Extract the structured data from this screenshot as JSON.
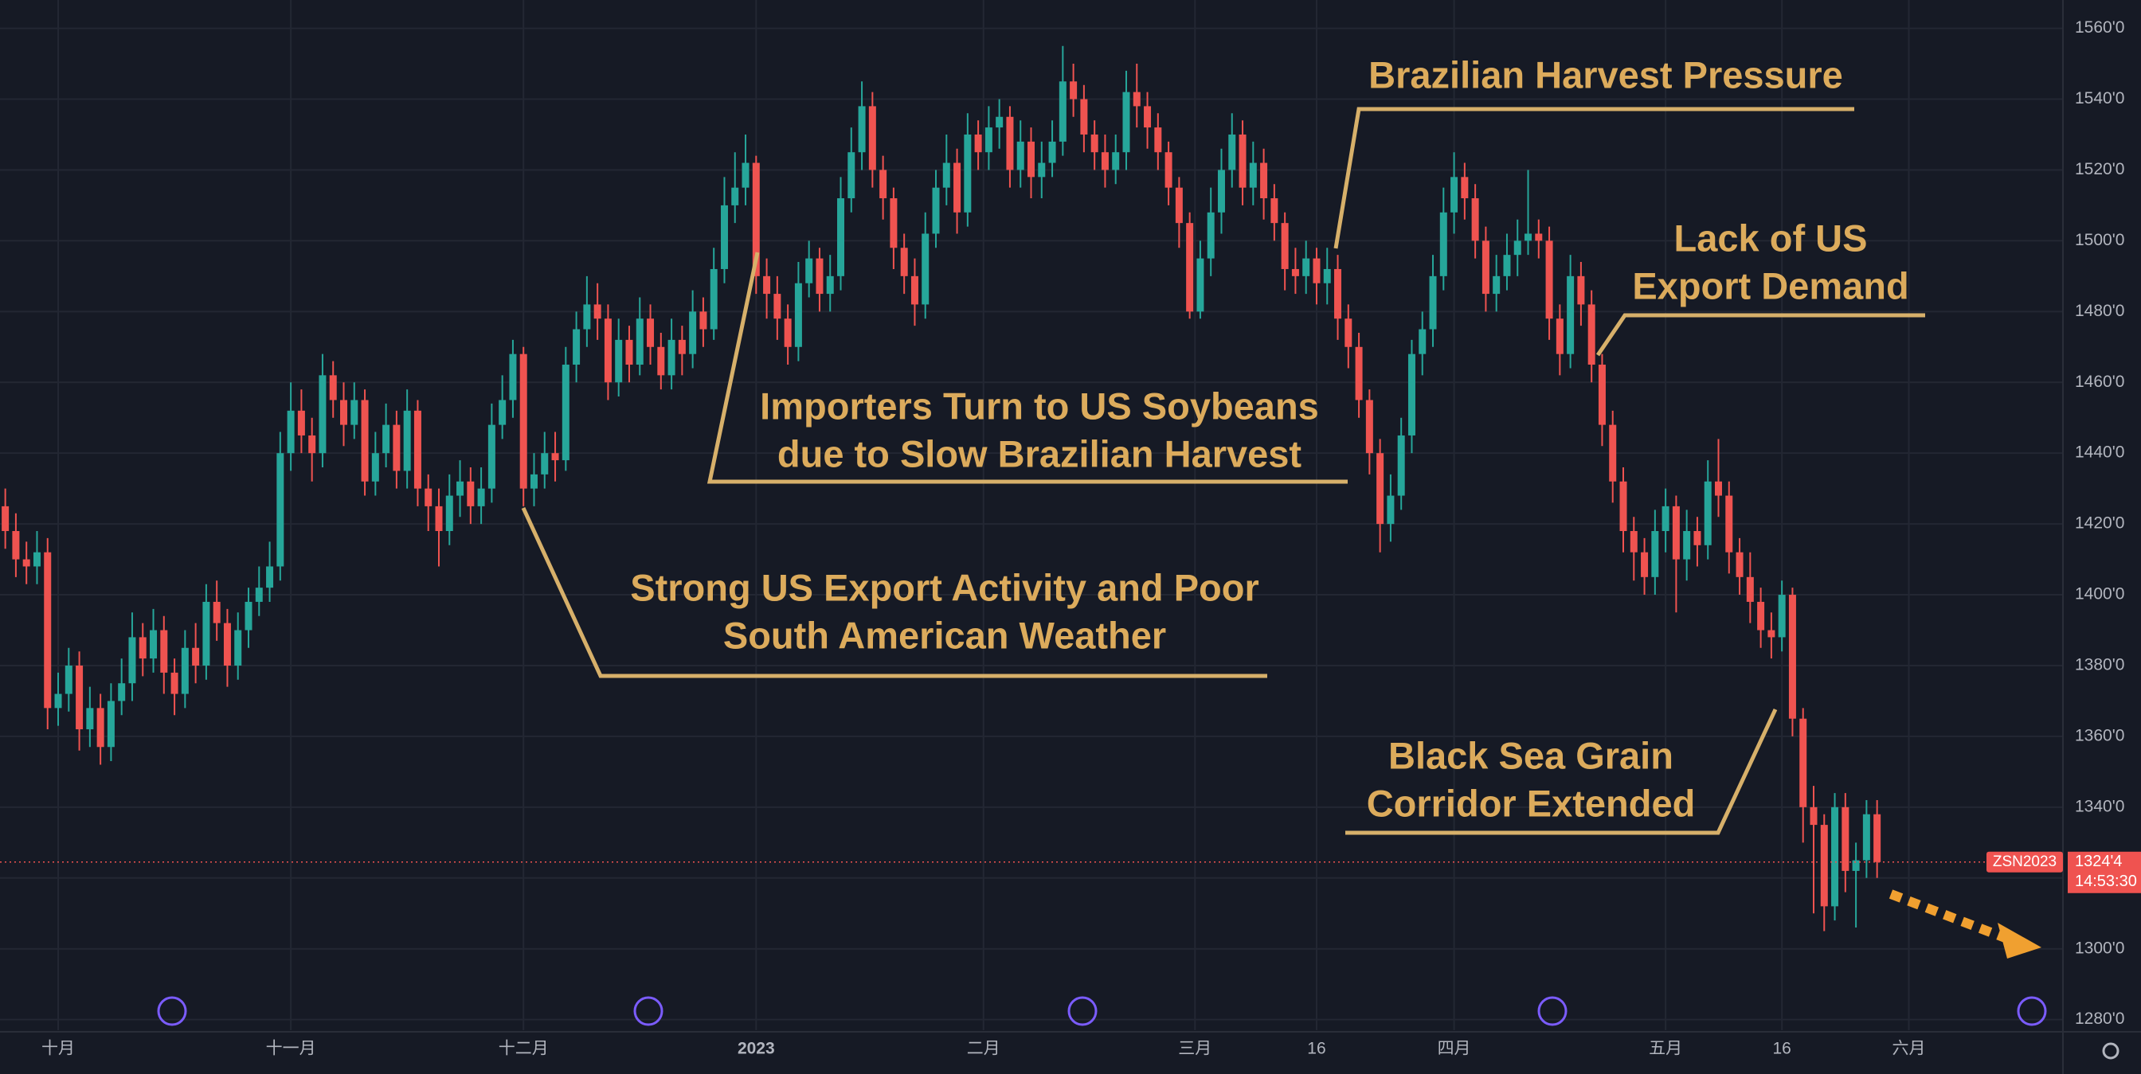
{
  "chart_data": {
    "type": "candlestick",
    "symbol": "ZSN2023",
    "countdown": "14:53:30",
    "last_price": {
      "value": 1324.5,
      "label": "1324'4"
    },
    "up_color": "#26a69a",
    "down_color": "#ef5350",
    "grid": true,
    "ylim": [
      1277,
      1568
    ],
    "xlim": [
      -0.5,
      194.5
    ],
    "yticks": [
      {
        "value": 1280,
        "label": "1280'0"
      },
      {
        "value": 1300,
        "label": "1300'0"
      },
      {
        "value": 1320,
        "label": "1320'0"
      },
      {
        "value": 1340,
        "label": "1340'0"
      },
      {
        "value": 1360,
        "label": "1360'0"
      },
      {
        "value": 1380,
        "label": "1380'0"
      },
      {
        "value": 1400,
        "label": "1400'0"
      },
      {
        "value": 1420,
        "label": "1420'0"
      },
      {
        "value": 1440,
        "label": "1440'0"
      },
      {
        "value": 1460,
        "label": "1460'0"
      },
      {
        "value": 1480,
        "label": "1480'0"
      },
      {
        "value": 1500,
        "label": "1500'0"
      },
      {
        "value": 1520,
        "label": "1520'0"
      },
      {
        "value": 1540,
        "label": "1540'0"
      },
      {
        "value": 1560,
        "label": "1560'0"
      }
    ],
    "xticks": [
      {
        "value": 5,
        "label": "十月"
      },
      {
        "value": 27,
        "label": "十一月"
      },
      {
        "value": 49,
        "label": "十二月"
      },
      {
        "value": 71,
        "label": "2023"
      },
      {
        "value": 92.5,
        "label": "二月"
      },
      {
        "value": 112.5,
        "label": "三月"
      },
      {
        "value": 124,
        "label": "16"
      },
      {
        "value": 137,
        "label": "四月"
      },
      {
        "value": 157,
        "label": "五月"
      },
      {
        "value": 168,
        "label": "16"
      },
      {
        "value": 180,
        "label": "六月"
      }
    ],
    "annotations": [
      {
        "lines": [
          "Brazilian Harvest Pressure"
        ]
      },
      {
        "lines": [
          "Lack of US",
          "Export Demand"
        ]
      },
      {
        "lines": [
          "Importers Turn to US Soybeans",
          "due to Slow Brazilian Harvest"
        ]
      },
      {
        "lines": [
          "Strong US Export Activity and Poor",
          "South American Weather"
        ]
      },
      {
        "lines": [
          "Black Sea Grain",
          "Corridor Extended"
        ]
      }
    ],
    "open": [
      1425,
      1418,
      1410,
      1408,
      1412,
      1368,
      1372,
      1380,
      1362,
      1368,
      1357,
      1370,
      1375,
      1388,
      1382,
      1390,
      1378,
      1372,
      1385,
      1380,
      1398,
      1392,
      1380,
      1390,
      1398,
      1402,
      1408,
      1440,
      1452,
      1445,
      1440,
      1462,
      1455,
      1448,
      1455,
      1432,
      1440,
      1448,
      1435,
      1452,
      1430,
      1425,
      1418,
      1428,
      1432,
      1425,
      1430,
      1448,
      1455,
      1468,
      1430,
      1434,
      1440,
      1438,
      1465,
      1475,
      1482,
      1478,
      1460,
      1472,
      1465,
      1478,
      1470,
      1462,
      1472,
      1468,
      1480,
      1475,
      1492,
      1510,
      1515,
      1522,
      1490,
      1485,
      1478,
      1470,
      1488,
      1495,
      1485,
      1490,
      1512,
      1525,
      1538,
      1520,
      1512,
      1498,
      1490,
      1482,
      1502,
      1515,
      1522,
      1508,
      1530,
      1525,
      1532,
      1535,
      1520,
      1528,
      1518,
      1522,
      1528,
      1545,
      1540,
      1530,
      1525,
      1520,
      1525,
      1542,
      1538,
      1532,
      1525,
      1515,
      1505,
      1480,
      1495,
      1508,
      1520,
      1530,
      1515,
      1522,
      1512,
      1505,
      1492,
      1490,
      1495,
      1488,
      1492,
      1478,
      1470,
      1455,
      1440,
      1420,
      1428,
      1445,
      1468,
      1475,
      1490,
      1508,
      1518,
      1512,
      1500,
      1485,
      1490,
      1496,
      1500,
      1502,
      1500,
      1478,
      1468,
      1490,
      1482,
      1465,
      1448,
      1432,
      1418,
      1412,
      1405,
      1418,
      1425,
      1410,
      1418,
      1414,
      1432,
      1428,
      1412,
      1405,
      1398,
      1390,
      1388,
      1400,
      1365,
      1340,
      1335,
      1312,
      1340,
      1322,
      1325,
      1338
    ],
    "high": [
      1430,
      1423,
      1415,
      1418,
      1416,
      1378,
      1385,
      1384,
      1374,
      1372,
      1375,
      1382,
      1395,
      1392,
      1396,
      1394,
      1382,
      1390,
      1392,
      1403,
      1404,
      1396,
      1395,
      1402,
      1408,
      1415,
      1446,
      1460,
      1458,
      1450,
      1468,
      1466,
      1460,
      1460,
      1458,
      1446,
      1454,
      1452,
      1458,
      1455,
      1434,
      1430,
      1434,
      1438,
      1436,
      1436,
      1454,
      1462,
      1472,
      1470,
      1440,
      1446,
      1446,
      1470,
      1480,
      1490,
      1488,
      1482,
      1478,
      1476,
      1484,
      1482,
      1474,
      1478,
      1476,
      1486,
      1484,
      1498,
      1518,
      1525,
      1530,
      1524,
      1495,
      1490,
      1482,
      1494,
      1500,
      1498,
      1496,
      1518,
      1532,
      1545,
      1542,
      1524,
      1515,
      1502,
      1495,
      1508,
      1520,
      1530,
      1526,
      1536,
      1534,
      1538,
      1540,
      1538,
      1534,
      1532,
      1528,
      1534,
      1555,
      1550,
      1544,
      1534,
      1530,
      1530,
      1548,
      1550,
      1542,
      1536,
      1528,
      1518,
      1508,
      1500,
      1515,
      1526,
      1536,
      1534,
      1528,
      1526,
      1516,
      1508,
      1498,
      1500,
      1498,
      1498,
      1496,
      1482,
      1474,
      1458,
      1444,
      1434,
      1450,
      1472,
      1480,
      1496,
      1515,
      1525,
      1522,
      1516,
      1504,
      1496,
      1502,
      1506,
      1520,
      1506,
      1504,
      1482,
      1496,
      1494,
      1486,
      1468,
      1452,
      1436,
      1422,
      1416,
      1424,
      1430,
      1428,
      1424,
      1422,
      1438,
      1444,
      1432,
      1416,
      1412,
      1402,
      1395,
      1404,
      1402,
      1368,
      1346,
      1338,
      1344,
      1344,
      1330,
      1342,
      1342
    ],
    "low": [
      1413,
      1405,
      1403,
      1403,
      1362,
      1363,
      1367,
      1356,
      1357,
      1352,
      1353,
      1366,
      1370,
      1377,
      1378,
      1372,
      1366,
      1368,
      1375,
      1376,
      1387,
      1374,
      1376,
      1385,
      1394,
      1398,
      1404,
      1435,
      1440,
      1432,
      1436,
      1450,
      1442,
      1444,
      1428,
      1428,
      1436,
      1430,
      1430,
      1425,
      1418,
      1408,
      1414,
      1422,
      1420,
      1420,
      1426,
      1444,
      1450,
      1425,
      1425,
      1430,
      1432,
      1435,
      1460,
      1470,
      1472,
      1455,
      1456,
      1460,
      1462,
      1465,
      1458,
      1458,
      1462,
      1464,
      1470,
      1472,
      1488,
      1505,
      1510,
      1485,
      1478,
      1472,
      1465,
      1466,
      1484,
      1480,
      1480,
      1486,
      1508,
      1520,
      1515,
      1506,
      1492,
      1485,
      1476,
      1478,
      1498,
      1510,
      1502,
      1504,
      1520,
      1520,
      1526,
      1515,
      1515,
      1512,
      1512,
      1518,
      1524,
      1535,
      1525,
      1520,
      1515,
      1516,
      1520,
      1532,
      1526,
      1520,
      1510,
      1498,
      1478,
      1478,
      1490,
      1502,
      1515,
      1510,
      1510,
      1506,
      1500,
      1486,
      1485,
      1485,
      1482,
      1482,
      1472,
      1464,
      1450,
      1434,
      1412,
      1415,
      1424,
      1440,
      1462,
      1470,
      1486,
      1502,
      1506,
      1495,
      1480,
      1480,
      1486,
      1490,
      1496,
      1495,
      1472,
      1462,
      1464,
      1476,
      1460,
      1442,
      1426,
      1412,
      1404,
      1400,
      1400,
      1412,
      1395,
      1404,
      1408,
      1410,
      1422,
      1406,
      1400,
      1392,
      1385,
      1382,
      1384,
      1360,
      1330,
      1310,
      1305,
      1308,
      1316,
      1306,
      1320,
      1320
    ],
    "close": [
      1418,
      1410,
      1408,
      1412,
      1368,
      1372,
      1380,
      1362,
      1368,
      1357,
      1370,
      1375,
      1388,
      1382,
      1390,
      1378,
      1372,
      1385,
      1380,
      1398,
      1392,
      1380,
      1390,
      1398,
      1402,
      1408,
      1440,
      1452,
      1445,
      1440,
      1462,
      1455,
      1448,
      1455,
      1432,
      1440,
      1448,
      1435,
      1452,
      1430,
      1425,
      1418,
      1428,
      1432,
      1425,
      1430,
      1448,
      1455,
      1468,
      1430,
      1434,
      1440,
      1438,
      1465,
      1475,
      1482,
      1478,
      1460,
      1472,
      1465,
      1478,
      1470,
      1462,
      1472,
      1468,
      1480,
      1475,
      1492,
      1510,
      1515,
      1522,
      1490,
      1485,
      1478,
      1470,
      1488,
      1495,
      1485,
      1490,
      1512,
      1525,
      1538,
      1520,
      1512,
      1498,
      1490,
      1482,
      1502,
      1515,
      1522,
      1508,
      1530,
      1525,
      1532,
      1535,
      1520,
      1528,
      1518,
      1522,
      1528,
      1545,
      1540,
      1530,
      1525,
      1520,
      1525,
      1542,
      1538,
      1532,
      1525,
      1515,
      1505,
      1480,
      1495,
      1508,
      1520,
      1530,
      1515,
      1522,
      1512,
      1505,
      1492,
      1490,
      1495,
      1488,
      1492,
      1478,
      1470,
      1455,
      1440,
      1420,
      1428,
      1445,
      1468,
      1475,
      1490,
      1508,
      1518,
      1512,
      1500,
      1485,
      1490,
      1496,
      1500,
      1502,
      1500,
      1478,
      1468,
      1490,
      1482,
      1465,
      1448,
      1432,
      1418,
      1412,
      1405,
      1418,
      1425,
      1410,
      1418,
      1414,
      1432,
      1428,
      1412,
      1405,
      1398,
      1390,
      1388,
      1400,
      1365,
      1340,
      1335,
      1312,
      1340,
      1322,
      1325,
      1338,
      1324.5
    ]
  }
}
